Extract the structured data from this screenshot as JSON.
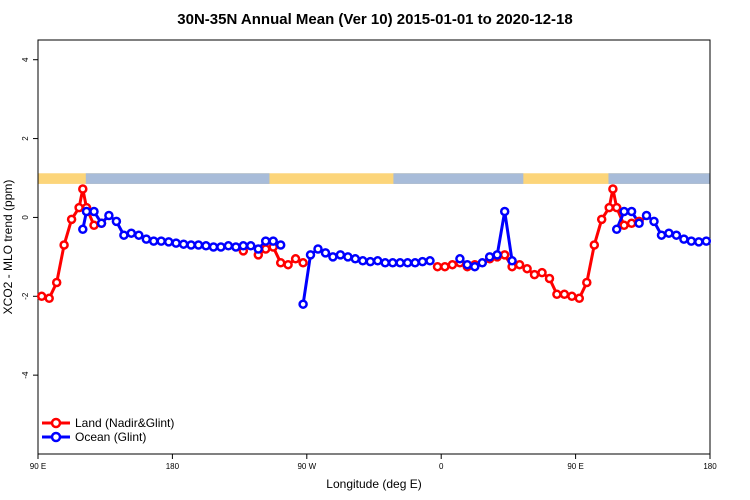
{
  "chart_data": {
    "type": "line",
    "title": "30N-35N Annual Mean (Ver 10)   2015-01-01 to 2020-12-18",
    "xlabel": "Longitude (deg E)",
    "ylabel": "XCO2 - MLO trend (ppm)",
    "xlim": [
      90,
      540
    ],
    "ylim": [
      -6,
      4.5
    ],
    "x_ticks": [
      {
        "value": 90,
        "label": "90 E"
      },
      {
        "value": 180,
        "label": "180"
      },
      {
        "value": 270,
        "label": "90 W"
      },
      {
        "value": 360,
        "label": "0"
      },
      {
        "value": 450,
        "label": "90 E"
      },
      {
        "value": 540,
        "label": "180"
      }
    ],
    "y_ticks": [
      {
        "value": 4,
        "label": "4"
      },
      {
        "value": 2,
        "label": "2"
      },
      {
        "value": 0,
        "label": "0"
      },
      {
        "value": -2,
        "label": "-2"
      },
      {
        "value": -4,
        "label": "-4"
      }
    ],
    "legend_position": "bottom-left",
    "surface_band": {
      "y_range": [
        0.85,
        1.12
      ],
      "land_color": "#fcd57a",
      "ocean_color": "#a8bcd9",
      "ocean_intervals": [
        [
          122,
          245
        ],
        [
          328,
          415
        ],
        [
          472,
          540
        ]
      ]
    },
    "series": [
      {
        "name": "Land (Nadir&Glint)",
        "color": "#ff0000",
        "points": [
          [
            92.5,
            -2.0
          ],
          [
            97.5,
            -2.05
          ],
          [
            102.5,
            -1.65
          ],
          [
            107.5,
            -0.7
          ],
          [
            112.5,
            -0.05
          ],
          [
            117.5,
            0.25
          ],
          [
            120,
            0.72
          ],
          [
            122.5,
            0.25
          ],
          [
            127.5,
            -0.2
          ],
          [
            132.5,
            -0.15
          ],
          [
            227.5,
            -0.85
          ],
          [
            237.5,
            -0.95
          ],
          [
            242.5,
            -0.8
          ],
          [
            247.5,
            -0.75
          ],
          [
            252.5,
            -1.15
          ],
          [
            257.5,
            -1.2
          ],
          [
            262.5,
            -1.05
          ],
          [
            267.5,
            -1.15
          ],
          [
            357.5,
            -1.25
          ],
          [
            362.5,
            -1.25
          ],
          [
            367.5,
            -1.2
          ],
          [
            372.5,
            -1.15
          ],
          [
            377.5,
            -1.25
          ],
          [
            382.5,
            -1.2
          ],
          [
            392.5,
            -1.05
          ],
          [
            397.5,
            -1.0
          ],
          [
            402.5,
            -0.95
          ],
          [
            407.5,
            -1.25
          ],
          [
            412.5,
            -1.2
          ],
          [
            417.5,
            -1.3
          ],
          [
            422.5,
            -1.45
          ],
          [
            427.5,
            -1.4
          ],
          [
            432.5,
            -1.55
          ],
          [
            437.5,
            -1.95
          ],
          [
            442.5,
            -1.95
          ],
          [
            447.5,
            -2.0
          ],
          [
            452.5,
            -2.05
          ],
          [
            457.5,
            -1.65
          ],
          [
            462.5,
            -0.7
          ],
          [
            467.5,
            -0.05
          ],
          [
            472.5,
            0.25
          ],
          [
            475,
            0.72
          ],
          [
            477.5,
            0.25
          ],
          [
            482.5,
            -0.2
          ],
          [
            487.5,
            -0.15
          ],
          [
            492.5,
            -0.1
          ]
        ]
      },
      {
        "name": "Ocean (Glint)",
        "color": "#0000ff",
        "points": [
          [
            120,
            -0.3
          ],
          [
            122.5,
            0.15
          ],
          [
            127.5,
            0.15
          ],
          [
            132.5,
            -0.15
          ],
          [
            137.5,
            0.05
          ],
          [
            142.5,
            -0.1
          ],
          [
            147.5,
            -0.45
          ],
          [
            152.5,
            -0.4
          ],
          [
            157.5,
            -0.45
          ],
          [
            162.5,
            -0.55
          ],
          [
            167.5,
            -0.6
          ],
          [
            172.5,
            -0.6
          ],
          [
            177.5,
            -0.62
          ],
          [
            182.5,
            -0.65
          ],
          [
            187.5,
            -0.68
          ],
          [
            192.5,
            -0.7
          ],
          [
            197.5,
            -0.7
          ],
          [
            202.5,
            -0.72
          ],
          [
            207.5,
            -0.75
          ],
          [
            212.5,
            -0.75
          ],
          [
            217.5,
            -0.72
          ],
          [
            222.5,
            -0.75
          ],
          [
            227.5,
            -0.72
          ],
          [
            232.5,
            -0.72
          ],
          [
            237.5,
            -0.8
          ],
          [
            242.5,
            -0.6
          ],
          [
            247.5,
            -0.6
          ],
          [
            252.5,
            -0.7
          ],
          [
            267.5,
            -2.2
          ],
          [
            272.5,
            -0.95
          ],
          [
            277.5,
            -0.8
          ],
          [
            282.5,
            -0.9
          ],
          [
            287.5,
            -1.0
          ],
          [
            292.5,
            -0.95
          ],
          [
            297.5,
            -1.0
          ],
          [
            302.5,
            -1.05
          ],
          [
            307.5,
            -1.1
          ],
          [
            312.5,
            -1.12
          ],
          [
            317.5,
            -1.1
          ],
          [
            322.5,
            -1.15
          ],
          [
            327.5,
            -1.15
          ],
          [
            332.5,
            -1.15
          ],
          [
            337.5,
            -1.15
          ],
          [
            342.5,
            -1.15
          ],
          [
            347.5,
            -1.12
          ],
          [
            352.5,
            -1.1
          ],
          [
            372.5,
            -1.05
          ],
          [
            377.5,
            -1.2
          ],
          [
            382.5,
            -1.25
          ],
          [
            387.5,
            -1.15
          ],
          [
            392.5,
            -1.0
          ],
          [
            397.5,
            -0.95
          ],
          [
            402.5,
            0.15
          ],
          [
            407.5,
            -1.1
          ],
          [
            477.5,
            -0.3
          ],
          [
            482.5,
            0.15
          ],
          [
            487.5,
            0.15
          ],
          [
            492.5,
            -0.15
          ],
          [
            497.5,
            0.05
          ],
          [
            502.5,
            -0.1
          ],
          [
            507.5,
            -0.45
          ],
          [
            512.5,
            -0.4
          ],
          [
            517.5,
            -0.45
          ],
          [
            522.5,
            -0.55
          ],
          [
            527.5,
            -0.6
          ],
          [
            532.5,
            -0.62
          ],
          [
            537.5,
            -0.6
          ]
        ]
      }
    ]
  }
}
